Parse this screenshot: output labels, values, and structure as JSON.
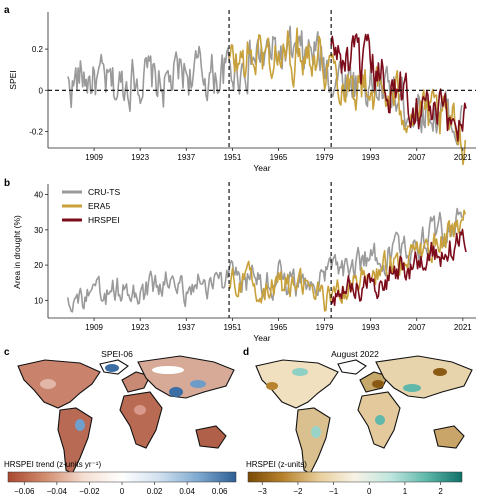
{
  "panels": {
    "a": "a",
    "b": "b",
    "c": "c",
    "d": "d"
  },
  "colors": {
    "cru": "#9a9a9a",
    "era": "#c8a13b",
    "hr": "#7d0c1b",
    "axis": "#222222"
  },
  "chart_data": [
    {
      "id": "a",
      "type": "line",
      "xlabel": "Year",
      "ylabel": "SPEI",
      "xticks": [
        1909,
        1923,
        1937,
        1951,
        1965,
        1979,
        1993,
        2007,
        2021
      ],
      "yticks": [
        -0.2,
        0,
        0.2
      ],
      "ylim": [
        -0.28,
        0.38
      ],
      "xlim": [
        1895,
        2025
      ],
      "vlines": [
        1950,
        1981
      ],
      "hline": 0,
      "series": [
        {
          "key": "cru",
          "x": [
            1901,
            1906,
            1911,
            1916,
            1921,
            1926,
            1931,
            1936,
            1941,
            1946,
            1951,
            1956,
            1961,
            1966,
            1971,
            1976,
            1981,
            1986,
            1991,
            1996,
            2001,
            2006,
            2011,
            2016,
            2021
          ],
          "y": [
            0.02,
            0.07,
            0.03,
            0.0,
            0.08,
            0.05,
            0.02,
            0.09,
            0.08,
            0.07,
            0.1,
            0.14,
            0.17,
            0.18,
            0.15,
            0.19,
            0.08,
            0.06,
            0.04,
            0.01,
            -0.04,
            -0.07,
            -0.1,
            -0.13,
            -0.17
          ]
        },
        {
          "key": "era",
          "x": [
            1950,
            1955,
            1960,
            1965,
            1970,
            1975,
            1980,
            1985,
            1990,
            1995,
            2000,
            2005,
            2010,
            2015,
            2020,
            2022
          ],
          "y": [
            0.12,
            0.15,
            0.17,
            0.16,
            0.18,
            0.22,
            0.14,
            0.05,
            0.02,
            0.0,
            -0.05,
            -0.08,
            -0.13,
            -0.16,
            -0.2,
            -0.23
          ]
        },
        {
          "key": "hr",
          "x": [
            1981,
            1985,
            1989,
            1993,
            1997,
            2001,
            2005,
            2009,
            2013,
            2017,
            2021,
            2022
          ],
          "y": [
            0.2,
            0.14,
            0.12,
            0.09,
            0.05,
            0.01,
            -0.04,
            -0.07,
            -0.12,
            -0.15,
            -0.13,
            -0.1
          ]
        }
      ]
    },
    {
      "id": "b",
      "type": "line",
      "xlabel": "Year",
      "ylabel": "Area in drought (%)",
      "xticks": [
        1909,
        1923,
        1937,
        1951,
        1965,
        1979,
        1993,
        2007,
        2021
      ],
      "yticks": [
        10,
        20,
        30,
        40
      ],
      "ylim": [
        5,
        43
      ],
      "xlim": [
        1895,
        2025
      ],
      "vlines": [
        1950,
        1981
      ],
      "legend": {
        "position": "top-left",
        "entries": [
          {
            "key": "cru",
            "label": "CRU-TS"
          },
          {
            "key": "era",
            "label": "ERA5"
          },
          {
            "key": "hr",
            "label": "HRSPEI"
          }
        ]
      },
      "series": [
        {
          "key": "cru",
          "x": [
            1901,
            1906,
            1911,
            1916,
            1921,
            1926,
            1931,
            1936,
            1941,
            1946,
            1951,
            1956,
            1961,
            1966,
            1971,
            1976,
            1981,
            1986,
            1991,
            1996,
            2001,
            2006,
            2011,
            2016,
            2021
          ],
          "y": [
            12,
            10,
            11,
            13,
            11,
            13,
            15,
            13,
            15,
            16,
            15,
            16,
            15,
            17,
            14,
            16,
            18,
            19,
            21,
            22,
            24,
            26,
            29,
            30,
            34
          ]
        },
        {
          "key": "era",
          "x": [
            1950,
            1955,
            1960,
            1965,
            1970,
            1975,
            1980,
            1985,
            1990,
            1995,
            2000,
            2005,
            2010,
            2015,
            2020,
            2022
          ],
          "y": [
            16,
            15,
            14,
            14,
            13,
            14,
            10,
            13,
            16,
            17,
            21,
            22,
            25,
            27,
            31,
            33
          ]
        },
        {
          "key": "hr",
          "x": [
            1981,
            1985,
            1989,
            1993,
            1997,
            2001,
            2005,
            2009,
            2013,
            2017,
            2021,
            2022
          ],
          "y": [
            11,
            13,
            14,
            15,
            17,
            19,
            20,
            22,
            23,
            24,
            29,
            28
          ]
        }
      ]
    },
    {
      "id": "c",
      "type": "heatmap",
      "title": "SPEI-06",
      "colorbar_label": "HRSPEI trend (z-units yr⁻¹)",
      "colorbar_ticks": [
        "−0.06",
        "−0.04",
        "−0.02",
        "0",
        "0.02",
        "0.04",
        "0.06"
      ],
      "colorbar_range": [
        -0.07,
        0.07
      ],
      "colorbar_colors": [
        "#a8482f",
        "#d38e70",
        "#f5dfd2",
        "#ffffff",
        "#cfe0ef",
        "#7fa9cf",
        "#2e5e95"
      ]
    },
    {
      "id": "d",
      "type": "heatmap",
      "title": "August 2022",
      "colorbar_label": "HRSPEI (z-units)",
      "colorbar_ticks": [
        "−3",
        "−2",
        "−1",
        "0",
        "1",
        "2"
      ],
      "colorbar_range": [
        -3.4,
        2.6
      ],
      "colorbar_colors": [
        "#7a4b06",
        "#b8832e",
        "#e8cf9b",
        "#f7f2e6",
        "#bfe6df",
        "#5fb8aa",
        "#0f7068"
      ]
    }
  ]
}
